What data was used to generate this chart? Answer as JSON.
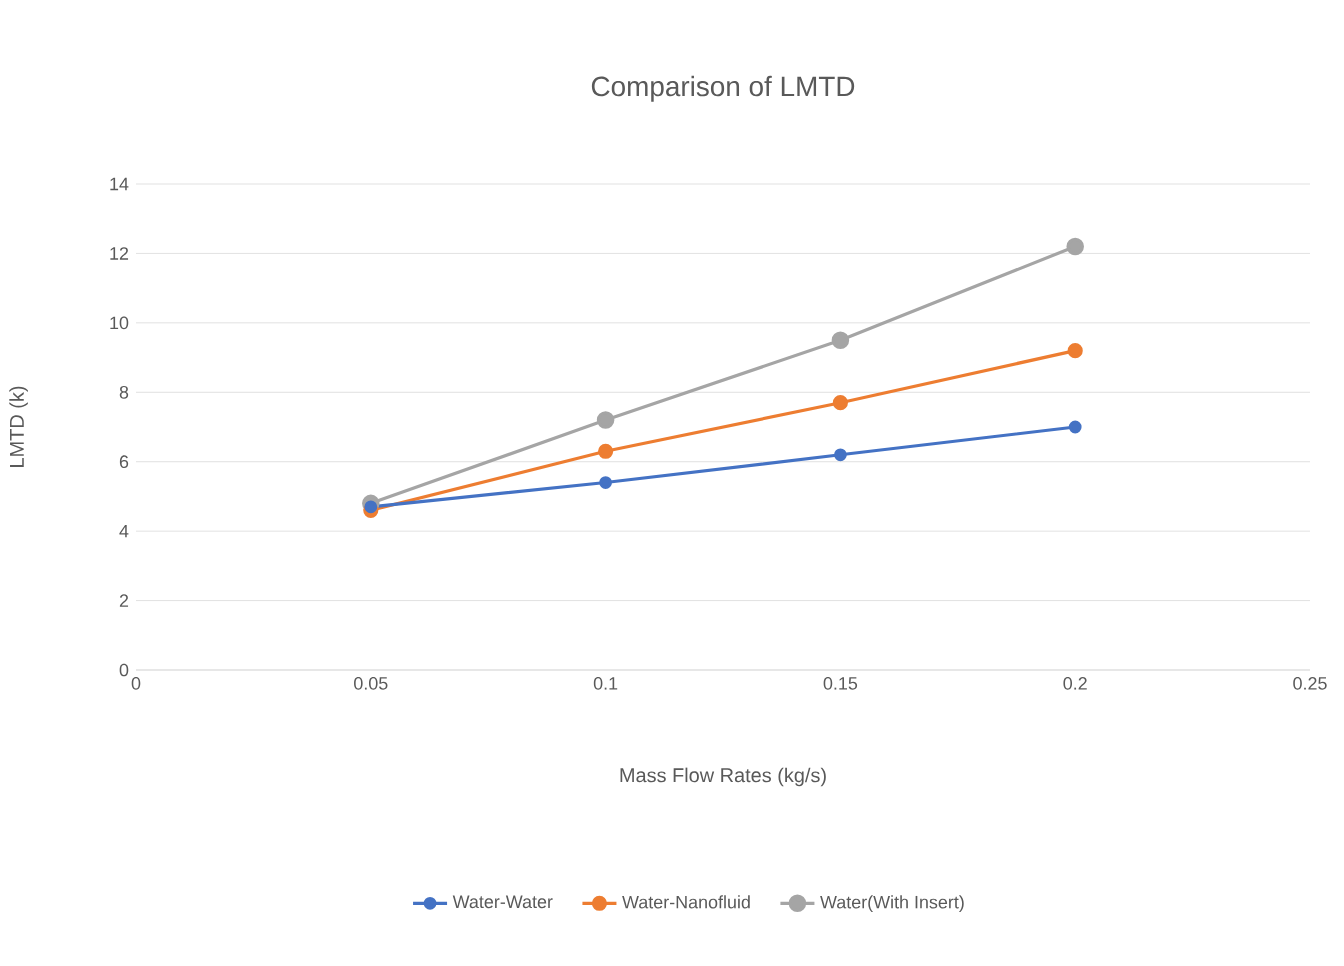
{
  "chart_data": {
    "type": "line",
    "title": "Comparison of LMTD",
    "xlabel": "Mass Flow Rates (kg/s)",
    "ylabel": "LMTD (k)",
    "x": [
      0.05,
      0.1,
      0.15,
      0.2
    ],
    "series": [
      {
        "name": "Water-Water",
        "color": "#4472c4",
        "values": [
          4.7,
          5.4,
          6.2,
          7.0
        ]
      },
      {
        "name": "Water-Nanofluid",
        "color": "#ed7d31",
        "values": [
          4.6,
          6.3,
          7.7,
          9.2
        ]
      },
      {
        "name": "Water(With Insert)",
        "color": "#a5a5a5",
        "values": [
          4.8,
          7.2,
          9.5,
          12.2
        ]
      }
    ],
    "xlim": [
      0,
      0.25
    ],
    "xticks": [
      0,
      0.05,
      0.1,
      0.15,
      0.2,
      0.25
    ],
    "ylim": [
      0,
      14
    ],
    "yticks": [
      0,
      2,
      4,
      6,
      8,
      10,
      12,
      14
    ],
    "grid": "y",
    "legend": "bottom",
    "marker": "circle",
    "line_style": "solid"
  }
}
